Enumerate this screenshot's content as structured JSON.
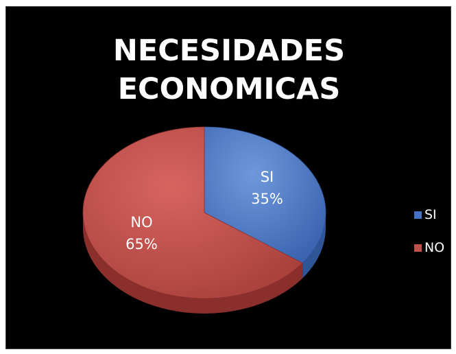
{
  "chart_data": {
    "type": "pie",
    "title_lines": [
      "NECESIDADES",
      "ECONOMICAS"
    ],
    "slices": [
      {
        "name": "SI",
        "value": 35,
        "label": "35%",
        "color": "#4472c4"
      },
      {
        "name": "NO",
        "value": 65,
        "label": "65%",
        "color": "#c0504d"
      }
    ],
    "legend_position": "right",
    "three_d": true
  }
}
